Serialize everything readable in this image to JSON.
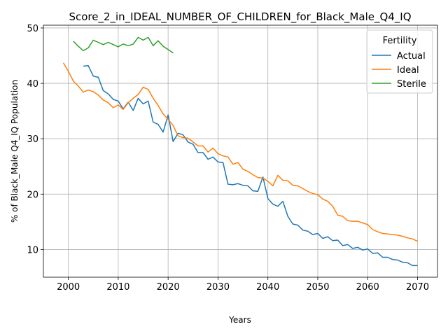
{
  "chart_data": {
    "type": "line",
    "title": "Score_2_in_IDEAL_NUMBER_OF_CHILDREN_for_Black_Male_Q4_IQ",
    "xlabel": "Years",
    "ylabel": "% of Black_Male Q4_IQ Population",
    "xlim": [
      1995,
      2074
    ],
    "ylim": [
      5,
      50.5
    ],
    "xticks": [
      2000,
      2010,
      2020,
      2030,
      2040,
      2050,
      2060,
      2070
    ],
    "yticks": [
      10,
      20,
      30,
      40,
      50
    ],
    "grid": true,
    "legend": {
      "title": "Fertility",
      "placement": "top-right"
    },
    "series": [
      {
        "name": "Actual",
        "color": "#1f77b4",
        "x": [
          2003,
          2004,
          2005,
          2006,
          2007,
          2008,
          2009,
          2010,
          2011,
          2012,
          2013,
          2014,
          2015,
          2016,
          2017,
          2018,
          2019,
          2020,
          2021,
          2022,
          2023,
          2024,
          2025,
          2026,
          2027,
          2028,
          2029,
          2030,
          2031,
          2032,
          2033,
          2034,
          2035,
          2036,
          2037,
          2038,
          2039,
          2040,
          2041,
          2042,
          2043,
          2044,
          2045,
          2046,
          2047,
          2048,
          2049,
          2050,
          2051,
          2052,
          2053,
          2054,
          2055,
          2056,
          2057,
          2058,
          2059,
          2060,
          2061,
          2062,
          2063,
          2064,
          2065,
          2066,
          2067,
          2068,
          2069,
          2070
        ],
        "y": [
          43.1,
          43.2,
          41.3,
          41.1,
          38.7,
          38.1,
          37.1,
          36.8,
          35.4,
          36.6,
          35.1,
          37.3,
          36.3,
          36.8,
          33.0,
          32.6,
          31.2,
          34.3,
          29.5,
          31.0,
          30.7,
          29.4,
          29.0,
          27.5,
          27.5,
          26.3,
          26.7,
          25.8,
          25.7,
          21.8,
          21.7,
          21.9,
          21.6,
          21.5,
          20.6,
          20.5,
          23.1,
          19.2,
          18.2,
          17.8,
          18.7,
          16.0,
          14.6,
          14.4,
          13.5,
          13.3,
          12.7,
          12.9,
          12.0,
          12.3,
          11.6,
          11.7,
          10.7,
          10.9,
          10.2,
          10.4,
          9.9,
          10.1,
          9.3,
          9.4,
          8.6,
          8.6,
          8.2,
          8.1,
          7.7,
          7.6,
          7.1,
          7.1
        ]
      },
      {
        "name": "Ideal",
        "color": "#ff7f0e",
        "x": [
          1999,
          2000,
          2001,
          2002,
          2003,
          2004,
          2005,
          2006,
          2007,
          2008,
          2009,
          2010,
          2011,
          2012,
          2013,
          2014,
          2015,
          2016,
          2017,
          2018,
          2019,
          2020,
          2021,
          2022,
          2023,
          2024,
          2025,
          2026,
          2027,
          2028,
          2029,
          2030,
          2031,
          2032,
          2033,
          2034,
          2035,
          2036,
          2037,
          2038,
          2039,
          2040,
          2041,
          2042,
          2043,
          2044,
          2045,
          2046,
          2047,
          2048,
          2049,
          2050,
          2051,
          2052,
          2053,
          2054,
          2055,
          2056,
          2057,
          2058,
          2059,
          2060,
          2061,
          2062,
          2063,
          2064,
          2065,
          2066,
          2067,
          2068,
          2069,
          2070
        ],
        "y": [
          43.7,
          42.2,
          40.4,
          39.5,
          38.4,
          38.8,
          38.5,
          37.9,
          37.0,
          36.5,
          35.6,
          36.1,
          35.3,
          36.5,
          37.3,
          38.0,
          39.3,
          38.9,
          37.3,
          36.0,
          34.5,
          33.5,
          32.4,
          30.5,
          30.2,
          30.1,
          29.4,
          28.7,
          28.7,
          27.6,
          28.3,
          27.3,
          26.9,
          26.7,
          25.4,
          25.7,
          24.5,
          24.1,
          23.5,
          23.0,
          22.9,
          22.3,
          21.5,
          23.4,
          22.5,
          22.4,
          21.6,
          21.5,
          21.0,
          20.5,
          20.1,
          19.9,
          19.1,
          18.7,
          17.8,
          16.2,
          16.0,
          15.2,
          15.1,
          15.1,
          14.8,
          14.5,
          13.6,
          13.2,
          12.9,
          12.8,
          12.7,
          12.6,
          12.4,
          12.1,
          11.9,
          11.5
        ]
      },
      {
        "name": "Sterile",
        "color": "#2ca02c",
        "x": [
          2001,
          2002,
          2003,
          2004,
          2005,
          2006,
          2007,
          2008,
          2009,
          2010,
          2011,
          2012,
          2013,
          2014,
          2015,
          2016,
          2017,
          2018,
          2019,
          2020,
          2021
        ],
        "y": [
          47.6,
          46.7,
          45.9,
          46.4,
          47.8,
          47.4,
          47.0,
          47.4,
          47.0,
          46.6,
          47.1,
          46.8,
          47.1,
          48.3,
          47.8,
          48.3,
          46.8,
          47.7,
          46.7,
          46.1,
          45.5
        ]
      }
    ]
  }
}
